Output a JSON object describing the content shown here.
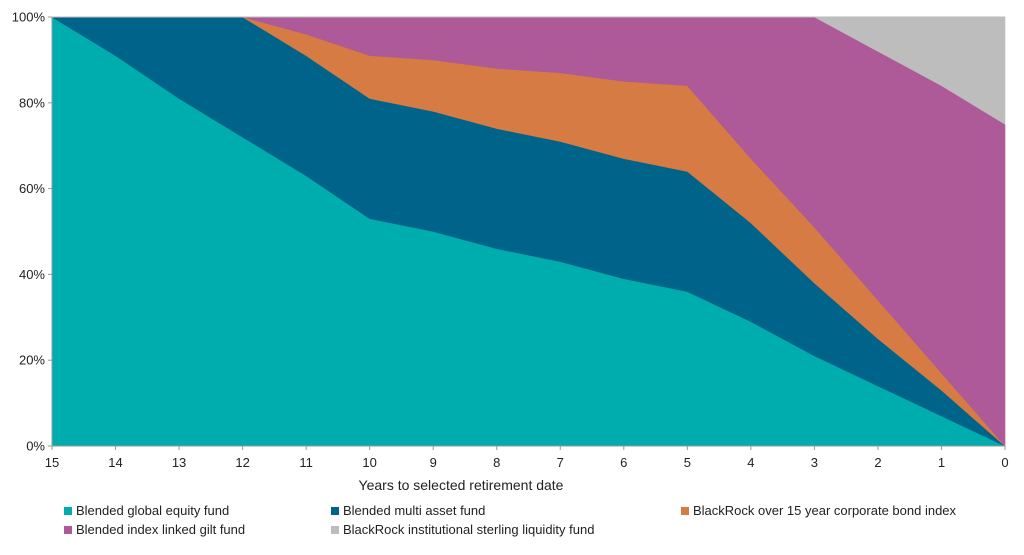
{
  "chart_data": {
    "type": "area",
    "stacked": true,
    "title": "",
    "xlabel": "Years to selected retirement date",
    "ylabel": "",
    "x": [
      15,
      14,
      13,
      12,
      11,
      10,
      9,
      8,
      7,
      6,
      5,
      4,
      3,
      2,
      1,
      0
    ],
    "x_ticks": [
      "15",
      "14",
      "13",
      "12",
      "11",
      "10",
      "9",
      "8",
      "7",
      "6",
      "5",
      "4",
      "3",
      "2",
      "1",
      "0"
    ],
    "y_ticks": [
      "0%",
      "20%",
      "40%",
      "60%",
      "80%",
      "100%"
    ],
    "y_tick_values": [
      0,
      20,
      40,
      60,
      80,
      100
    ],
    "ylim": [
      0,
      100
    ],
    "x_reversed": true,
    "grid": false,
    "legend_position": "bottom",
    "series": [
      {
        "name": "Blended global equity fund",
        "color": "#00ADAE",
        "values": [
          100,
          91,
          81,
          72,
          63,
          53,
          50,
          46,
          43,
          39,
          36,
          29,
          21,
          14,
          7,
          0
        ]
      },
      {
        "name": "Blended multi asset fund",
        "color": "#006389",
        "values": [
          0,
          9,
          19,
          28,
          28,
          28,
          28,
          28,
          28,
          28,
          28,
          23,
          17,
          11,
          6,
          0
        ]
      },
      {
        "name": "BlackRock over 15 year corporate bond index",
        "color": "#D67B43",
        "values": [
          0,
          0,
          0,
          0,
          5,
          10,
          12,
          14,
          16,
          18,
          20,
          15,
          13,
          9,
          4,
          0
        ]
      },
      {
        "name": "Blended index linked gilt fund",
        "color": "#AE5A98",
        "values": [
          0,
          0,
          0,
          0,
          4,
          9,
          10,
          12,
          13,
          15,
          16,
          33,
          49,
          58,
          67,
          75
        ]
      },
      {
        "name": "BlackRock institutional sterling liquidity fund",
        "color": "#BDBDBD",
        "values": [
          0,
          0,
          0,
          0,
          0,
          0,
          0,
          0,
          0,
          0,
          0,
          0,
          0,
          8,
          16,
          25
        ]
      }
    ],
    "legend_order": [
      0,
      1,
      2,
      3,
      4
    ]
  }
}
